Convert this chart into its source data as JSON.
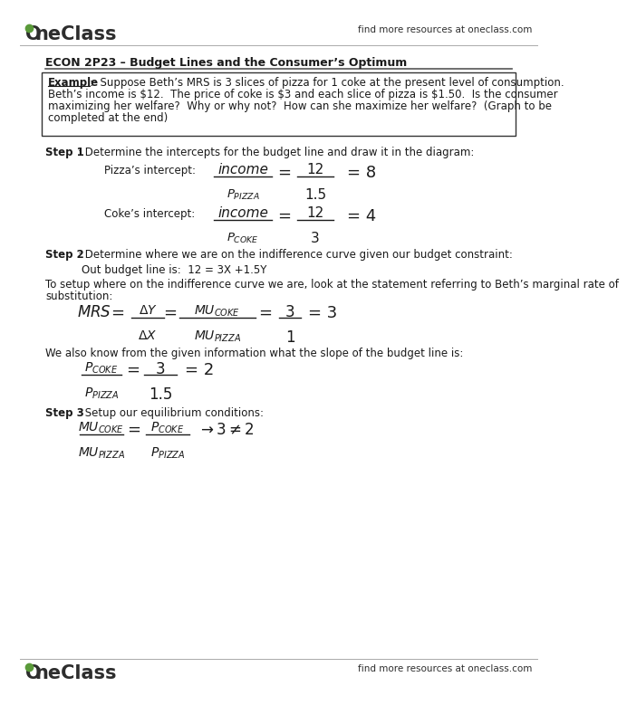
{
  "bg_color": "#ffffff",
  "header_right_text": "find more resources at oneclass.com",
  "footer_right_text": "find more resources at oneclass.com",
  "section_title": "ECON 2P23 – Budget Lines and the Consumer’s Optimum",
  "example_line1": ":  Suppose Beth’s MRS is 3 slices of pizza for 1 coke at the present level of consumption.",
  "example_line2": "Beth’s income is $12.  The price of coke is $3 and each slice of pizza is $1.50.  Is the consumer",
  "example_line3": "maximizing her welfare?  Why or why not?  How can she maximize her welfare?  (Graph to be",
  "example_line4": "completed at the end)",
  "step1_rest": ": Determine the intercepts for the budget line and draw it in the diagram:",
  "pizza_label": "Pizza’s intercept:",
  "coke_label": "Coke’s intercept:",
  "step2_rest": ": Determine where we are on the indifference curve given our budget constraint:",
  "budget_line_text": "Out budget line is:  12 = 3X +1.5Y",
  "indiff_line1": "To setup where on the indifference curve we are, look at the statement referring to Beth’s marginal rate of",
  "indiff_line2": "substitution:",
  "slope_intro": "We also know from the given information what the slope of the budget line is:",
  "step3_rest": ": Setup our equilibrium conditions:"
}
